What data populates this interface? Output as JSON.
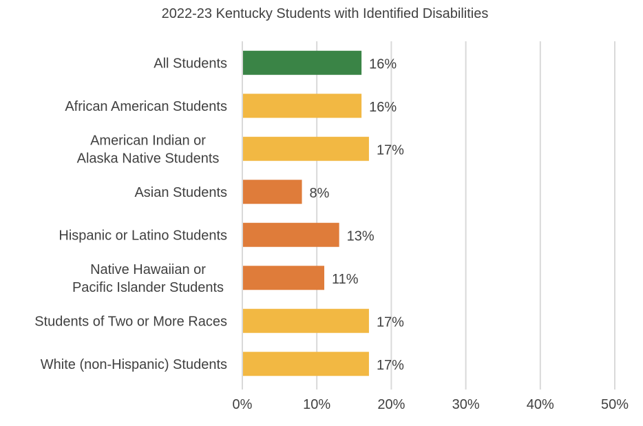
{
  "chart_data": {
    "type": "bar",
    "orientation": "horizontal",
    "title": "2022-23 Kentucky Students with Identified Disabilities",
    "xlabel": "",
    "ylabel": "",
    "xlim": [
      0,
      50
    ],
    "x_ticks": [
      0,
      10,
      20,
      30,
      40,
      50
    ],
    "x_tick_labels": [
      "0%",
      "10%",
      "20%",
      "30%",
      "40%",
      "50%"
    ],
    "grid": true,
    "categories": [
      [
        "All Students"
      ],
      [
        "African American Students"
      ],
      [
        "American Indian or",
        "Alaska Native Students"
      ],
      [
        "Asian Students"
      ],
      [
        "Hispanic or Latino Students"
      ],
      [
        "Native Hawaiian or",
        "Pacific Islander Students"
      ],
      [
        "Students of Two or More Races"
      ],
      [
        "White (non-Hispanic) Students"
      ]
    ],
    "values": [
      16,
      16,
      17,
      8,
      13,
      11,
      17,
      17
    ],
    "data_labels": [
      "16%",
      "16%",
      "17%",
      "8%",
      "13%",
      "11%",
      "17%",
      "17%"
    ],
    "bar_colors": [
      "#3a8446",
      "#f2b843",
      "#f2b843",
      "#df7c3a",
      "#df7c3a",
      "#df7c3a",
      "#f2b843",
      "#f2b843"
    ],
    "gridline_color": "#d9d9d9"
  }
}
